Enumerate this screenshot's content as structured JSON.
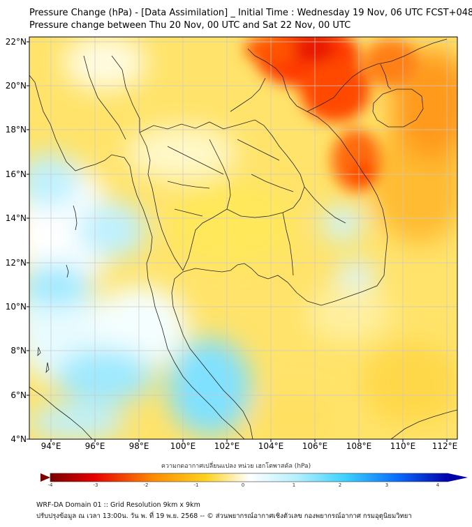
{
  "header": {
    "title": "Pressure Change (hPa) - [Data Assimilation] _ Initial Time : Wednesday 19 Nov, 06 UTC FCST+048",
    "subtitle": "Pressure change between Thu 20 Nov, 00 UTC and Sat 22 Nov, 00 UTC"
  },
  "map": {
    "lat_labels": [
      "22°N",
      "20°N",
      "18°N",
      "16°N",
      "14°N",
      "12°N",
      "10°N",
      "8°N",
      "6°N",
      "4°N"
    ],
    "lon_labels": [
      "94°E",
      "96°E",
      "98°E",
      "100°E",
      "102°E",
      "104°E",
      "106°E",
      "108°E",
      "110°E",
      "112°E"
    ],
    "extent": {
      "lon": [
        93,
        112.5
      ],
      "lat": [
        4,
        22.2
      ]
    }
  },
  "colorbar": {
    "title": "ความกดอากาศเปลี่ยนแปลง หน่วย เฮกโตพาสคัล (hPa)",
    "ticks": [
      "-4",
      "-3",
      "-2",
      "-1",
      "0",
      "1",
      "2",
      "3",
      "4"
    ],
    "colors": {
      "neg4": "#7a0000",
      "neg3": "#e60000",
      "neg2": "#ff8c00",
      "neg1": "#ffd21e",
      "zero": "#ffffff",
      "pos1": "#b4f0ff",
      "pos2": "#3cd2ff",
      "pos3": "#0a6eff",
      "pos4": "#0000aa"
    }
  },
  "footer": {
    "line1": "WRF-DA Domain 01 :: Grid Resolution 9km x 9km",
    "line2": "ปรับปรุงข้อมูล ณ เวลา 13:00น. วัน พ. ที่ 19 พ.ย. 2568 -- © ส่วนพยากรณ์อากาศเชิงตัวเลข กองพยากรณ์อากาศ กรมอุตุนิยมวิทยา"
  }
}
